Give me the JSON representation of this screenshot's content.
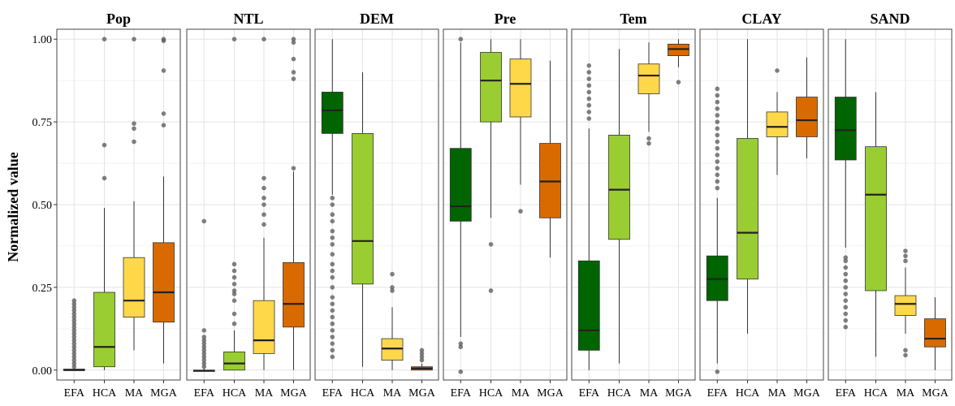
{
  "chart_data": {
    "type": "box",
    "ylabel": "Normalized value",
    "ylim": [
      -0.03,
      1.03
    ],
    "yticks": [
      {
        "value": 0.0,
        "label": "0.00"
      },
      {
        "value": 0.25,
        "label": "0.25"
      },
      {
        "value": 0.5,
        "label": "0.50"
      },
      {
        "value": 0.75,
        "label": "0.75"
      },
      {
        "value": 1.0,
        "label": "1.00"
      }
    ],
    "categories": [
      "EFA",
      "HCA",
      "MA",
      "MGA"
    ],
    "colors": {
      "EFA": "#006400",
      "HCA": "#9ACD32",
      "MA": "#FFD84A",
      "MGA": "#D96A00"
    },
    "grid": true,
    "panels": [
      {
        "title": "Pop",
        "boxes": [
          {
            "category": "EFA",
            "q1": 0.0,
            "median": 0.0,
            "q3": 0.003,
            "whisker_low": 0.0,
            "whisker_high": 0.005,
            "outliers": [
              0.01,
              0.02,
              0.03,
              0.04,
              0.05,
              0.06,
              0.07,
              0.08,
              0.09,
              0.1,
              0.11,
              0.12,
              0.13,
              0.14,
              0.15,
              0.16,
              0.17,
              0.18,
              0.19,
              0.2,
              0.21
            ]
          },
          {
            "category": "HCA",
            "q1": 0.01,
            "median": 0.07,
            "q3": 0.235,
            "whisker_low": 0.0,
            "whisker_high": 0.49,
            "outliers": [
              0.58,
              0.68,
              1.0
            ]
          },
          {
            "category": "MA",
            "q1": 0.16,
            "median": 0.21,
            "q3": 0.34,
            "whisker_low": 0.06,
            "whisker_high": 0.51,
            "outliers": [
              0.69,
              0.73,
              0.745,
              1.0
            ]
          },
          {
            "category": "MGA",
            "q1": 0.145,
            "median": 0.235,
            "q3": 0.385,
            "whisker_low": 0.02,
            "whisker_high": 0.585,
            "outliers": [
              0.74,
              0.775,
              0.905,
              0.995,
              1.0
            ]
          }
        ]
      },
      {
        "title": "NTL",
        "boxes": [
          {
            "category": "EFA",
            "q1": -0.003,
            "median": -0.002,
            "q3": 0.0,
            "whisker_low": -0.003,
            "whisker_high": 0.005,
            "outliers": [
              0.01,
              0.02,
              0.03,
              0.04,
              0.05,
              0.06,
              0.07,
              0.08,
              0.09,
              0.1,
              0.12,
              0.45
            ]
          },
          {
            "category": "HCA",
            "q1": 0.0,
            "median": 0.02,
            "q3": 0.055,
            "whisker_low": 0.0,
            "whisker_high": 0.12,
            "outliers": [
              0.14,
              0.17,
              0.21,
              0.23,
              0.24,
              0.26,
              0.28,
              0.3,
              0.32,
              1.0
            ]
          },
          {
            "category": "MA",
            "q1": 0.05,
            "median": 0.09,
            "q3": 0.21,
            "whisker_low": 0.0,
            "whisker_high": 0.4,
            "outliers": [
              0.44,
              0.47,
              0.5,
              0.52,
              0.55,
              0.58,
              1.0
            ]
          },
          {
            "category": "MGA",
            "q1": 0.13,
            "median": 0.2,
            "q3": 0.325,
            "whisker_low": 0.0,
            "whisker_high": 0.6,
            "outliers": [
              0.61,
              0.88,
              0.9,
              0.94,
              0.99,
              1.0
            ]
          }
        ]
      },
      {
        "title": "DEM",
        "boxes": [
          {
            "category": "EFA",
            "q1": 0.715,
            "median": 0.785,
            "q3": 0.84,
            "whisker_low": 0.53,
            "whisker_high": 1.0,
            "outliers": [
              0.04,
              0.06,
              0.08,
              0.1,
              0.12,
              0.14,
              0.16,
              0.18,
              0.2,
              0.22,
              0.25,
              0.28,
              0.3,
              0.32,
              0.35,
              0.38,
              0.4,
              0.42,
              0.45,
              0.47,
              0.5,
              0.52
            ]
          },
          {
            "category": "HCA",
            "q1": 0.26,
            "median": 0.39,
            "q3": 0.715,
            "whisker_low": 0.01,
            "whisker_high": 0.9,
            "outliers": []
          },
          {
            "category": "MA",
            "q1": 0.03,
            "median": 0.065,
            "q3": 0.095,
            "whisker_low": 0.0,
            "whisker_high": 0.19,
            "outliers": [
              0.24,
              0.25,
              0.29
            ]
          },
          {
            "category": "MGA",
            "q1": 0.0,
            "median": 0.005,
            "q3": 0.01,
            "whisker_low": 0.0,
            "whisker_high": 0.02,
            "outliers": [
              0.03,
              0.04,
              0.05,
              0.06
            ]
          }
        ]
      },
      {
        "title": "Pre",
        "boxes": [
          {
            "category": "EFA",
            "q1": 0.45,
            "median": 0.495,
            "q3": 0.67,
            "whisker_low": 0.1,
            "whisker_high": 0.99,
            "outliers": [
              -0.005,
              0.07,
              0.08,
              1.0
            ]
          },
          {
            "category": "HCA",
            "q1": 0.75,
            "median": 0.875,
            "q3": 0.96,
            "whisker_low": 0.46,
            "whisker_high": 1.0,
            "outliers": [
              0.24,
              0.38
            ]
          },
          {
            "category": "MA",
            "q1": 0.765,
            "median": 0.865,
            "q3": 0.94,
            "whisker_low": 0.56,
            "whisker_high": 1.0,
            "outliers": [
              0.48
            ]
          },
          {
            "category": "MGA",
            "q1": 0.46,
            "median": 0.57,
            "q3": 0.685,
            "whisker_low": 0.34,
            "whisker_high": 0.935,
            "outliers": []
          }
        ]
      },
      {
        "title": "Tem",
        "boxes": [
          {
            "category": "EFA",
            "q1": 0.06,
            "median": 0.12,
            "q3": 0.33,
            "whisker_low": 0.0,
            "whisker_high": 0.73,
            "outliers": [
              0.76,
              0.78,
              0.8,
              0.82,
              0.84,
              0.86,
              0.88,
              0.9,
              0.92
            ]
          },
          {
            "category": "HCA",
            "q1": 0.395,
            "median": 0.545,
            "q3": 0.71,
            "whisker_low": 0.02,
            "whisker_high": 0.97,
            "outliers": []
          },
          {
            "category": "MA",
            "q1": 0.835,
            "median": 0.89,
            "q3": 0.925,
            "whisker_low": 0.72,
            "whisker_high": 0.99,
            "outliers": [
              0.685,
              0.7
            ]
          },
          {
            "category": "MGA",
            "q1": 0.95,
            "median": 0.97,
            "q3": 0.985,
            "whisker_low": 0.915,
            "whisker_high": 1.0,
            "outliers": [
              0.87
            ]
          }
        ]
      },
      {
        "title": "CLAY",
        "boxes": [
          {
            "category": "EFA",
            "q1": 0.21,
            "median": 0.275,
            "q3": 0.345,
            "whisker_low": 0.02,
            "whisker_high": 0.52,
            "outliers": [
              -0.005,
              0.55,
              0.57,
              0.59,
              0.61,
              0.63,
              0.65,
              0.67,
              0.69,
              0.71,
              0.73,
              0.75,
              0.77,
              0.79,
              0.81,
              0.83,
              0.85
            ]
          },
          {
            "category": "HCA",
            "q1": 0.275,
            "median": 0.415,
            "q3": 0.7,
            "whisker_low": 0.11,
            "whisker_high": 1.0,
            "outliers": []
          },
          {
            "category": "MA",
            "q1": 0.705,
            "median": 0.735,
            "q3": 0.78,
            "whisker_low": 0.59,
            "whisker_high": 0.84,
            "outliers": [
              0.905
            ]
          },
          {
            "category": "MGA",
            "q1": 0.705,
            "median": 0.755,
            "q3": 0.825,
            "whisker_low": 0.64,
            "whisker_high": 0.945,
            "outliers": []
          }
        ]
      },
      {
        "title": "SAND",
        "boxes": [
          {
            "category": "EFA",
            "q1": 0.635,
            "median": 0.725,
            "q3": 0.825,
            "whisker_low": 0.37,
            "whisker_high": 1.0,
            "outliers": [
              0.13,
              0.15,
              0.17,
              0.19,
              0.21,
              0.23,
              0.25,
              0.27,
              0.29,
              0.31,
              0.33,
              0.34
            ]
          },
          {
            "category": "HCA",
            "q1": 0.24,
            "median": 0.53,
            "q3": 0.675,
            "whisker_low": 0.04,
            "whisker_high": 0.84,
            "outliers": []
          },
          {
            "category": "MA",
            "q1": 0.165,
            "median": 0.2,
            "q3": 0.225,
            "whisker_low": 0.11,
            "whisker_high": 0.31,
            "outliers": [
              0.045,
              0.06,
              0.33,
              0.345,
              0.36
            ]
          },
          {
            "category": "MGA",
            "q1": 0.07,
            "median": 0.095,
            "q3": 0.155,
            "whisker_low": 0.0,
            "whisker_high": 0.22,
            "outliers": []
          }
        ]
      }
    ]
  }
}
